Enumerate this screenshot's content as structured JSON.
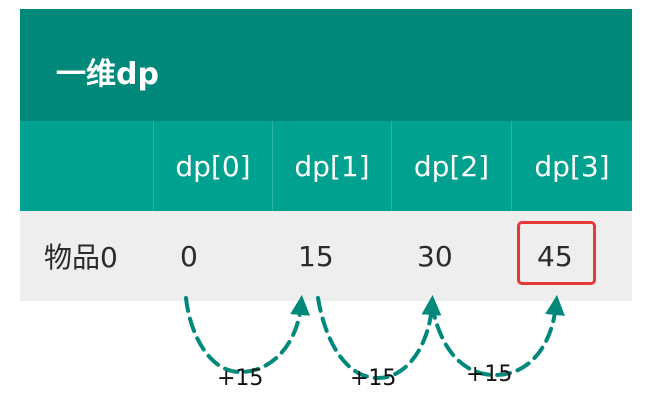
{
  "title": "一维dp",
  "headers": [
    "",
    "dp[0]",
    "dp[1]",
    "dp[2]",
    "dp[3]"
  ],
  "row": {
    "label": "物品0",
    "values": [
      "0",
      "15",
      "30",
      "45"
    ]
  },
  "highlighted_index": 3,
  "arrow_labels": [
    "+15",
    "+15",
    "+15"
  ],
  "colors": {
    "title_bg": "#00897b",
    "header_bg": "#00a28f",
    "row_bg": "#eeeeee",
    "arrow": "#00897b",
    "highlight": "#e53935"
  }
}
